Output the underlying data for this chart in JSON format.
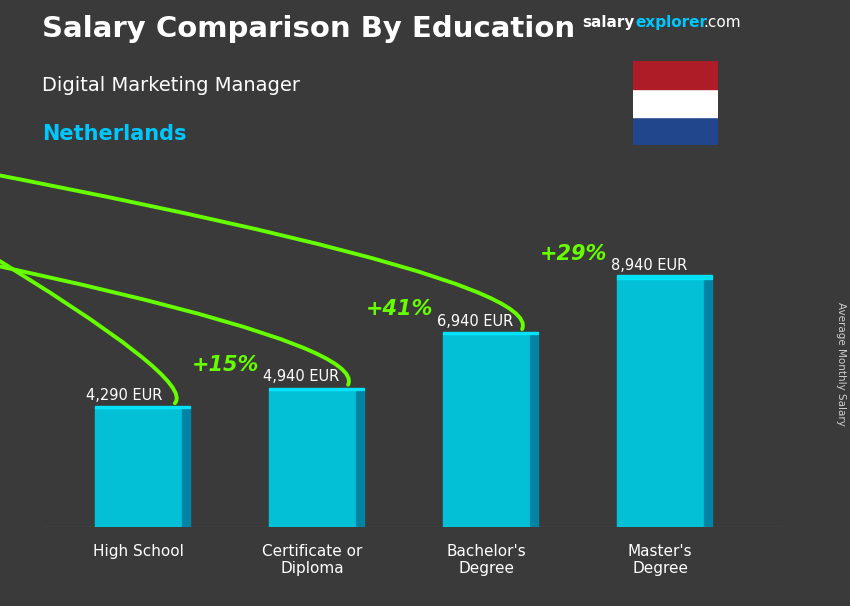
{
  "title_main": "Salary Comparison By Education",
  "title_sub": "Digital Marketing Manager",
  "title_country": "Netherlands",
  "watermark_salary": "salary",
  "watermark_explorer": "explorer",
  "watermark_com": ".com",
  "ylabel_rotated": "Average Monthly Salary",
  "categories": [
    "High School",
    "Certificate or\nDiploma",
    "Bachelor's\nDegree",
    "Master's\nDegree"
  ],
  "values": [
    4290,
    4940,
    6940,
    8940
  ],
  "value_labels": [
    "4,290 EUR",
    "4,940 EUR",
    "6,940 EUR",
    "8,940 EUR"
  ],
  "pct_labels": [
    "+15%",
    "+41%",
    "+29%"
  ],
  "bar_color_face": "#00c8e0",
  "bar_color_side": "#0088aa",
  "bar_color_top": "#00e8ff",
  "bg_color": "#3a3a3a",
  "text_color_white": "#ffffff",
  "text_color_cyan": "#00c8ff",
  "text_color_green": "#66ff00",
  "flag_colors_top_to_bottom": [
    "#AE1C28",
    "#ffffff",
    "#21468B"
  ],
  "ylim_max": 12000,
  "figsize": [
    8.5,
    6.06
  ],
  "dpi": 100,
  "bar_width": 0.5,
  "x_positions": [
    0,
    1,
    2,
    3
  ]
}
